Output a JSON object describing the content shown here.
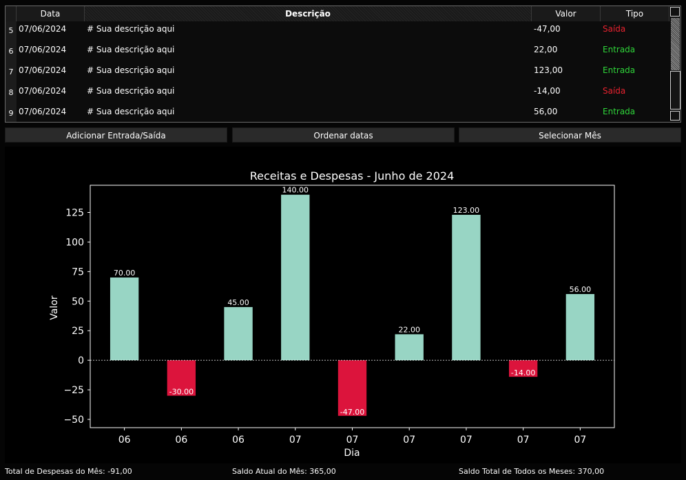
{
  "table": {
    "headers": {
      "data": "Data",
      "descricao": "Descrição",
      "valor": "Valor",
      "tipo": "Tipo"
    },
    "rows": [
      {
        "num": "5",
        "date": "07/06/2024",
        "desc": "# Sua descrição aqui",
        "valor": "-47,00",
        "tipo": "Saída"
      },
      {
        "num": "6",
        "date": "07/06/2024",
        "desc": "# Sua descrição aqui",
        "valor": "22,00",
        "tipo": "Entrada"
      },
      {
        "num": "7",
        "date": "07/06/2024",
        "desc": "# Sua descrição aqui",
        "valor": "123,00",
        "tipo": "Entrada"
      },
      {
        "num": "8",
        "date": "07/06/2024",
        "desc": "# Sua descrição aqui",
        "valor": "-14,00",
        "tipo": "Saída"
      },
      {
        "num": "9",
        "date": "07/06/2024",
        "desc": "# Sua descrição aqui",
        "valor": "56,00",
        "tipo": "Entrada"
      }
    ]
  },
  "buttons": {
    "add": "Adicionar Entrada/Saída",
    "sort": "Ordenar datas",
    "month": "Selecionar Mês"
  },
  "colors": {
    "positive_bar": "#98d5c4",
    "negative_bar": "#dc143c",
    "saida_text": "#e8222f",
    "entrada_text": "#2fd73a"
  },
  "chart_data": {
    "type": "bar",
    "title": "Receitas e Despesas - Junho de 2024",
    "xlabel": "Dia",
    "ylabel": "Valor",
    "categories": [
      "06",
      "06",
      "06",
      "07",
      "07",
      "07",
      "07",
      "07",
      "07"
    ],
    "values": [
      70,
      -30,
      45,
      140,
      -47,
      22,
      123,
      -14,
      56
    ],
    "value_labels": [
      "70.00",
      "-30.00",
      "45.00",
      "140.00",
      "-47.00",
      "22.00",
      "123.00",
      "-14.00",
      "56.00"
    ],
    "yticks": [
      -50,
      -25,
      0,
      25,
      50,
      75,
      100,
      125
    ],
    "ytick_labels": [
      "−50",
      "−25",
      "0",
      "25",
      "50",
      "75",
      "100",
      "125"
    ],
    "ylim": [
      -57,
      148
    ],
    "zero_line": "dashed",
    "grid": false,
    "legend": false
  },
  "footer": {
    "despesas": "Total de Despesas do Mês: -91,00",
    "saldo_mes": "Saldo Atual do Mês: 365,00",
    "saldo_total": "Saldo Total de Todos os Meses: 370,00"
  }
}
